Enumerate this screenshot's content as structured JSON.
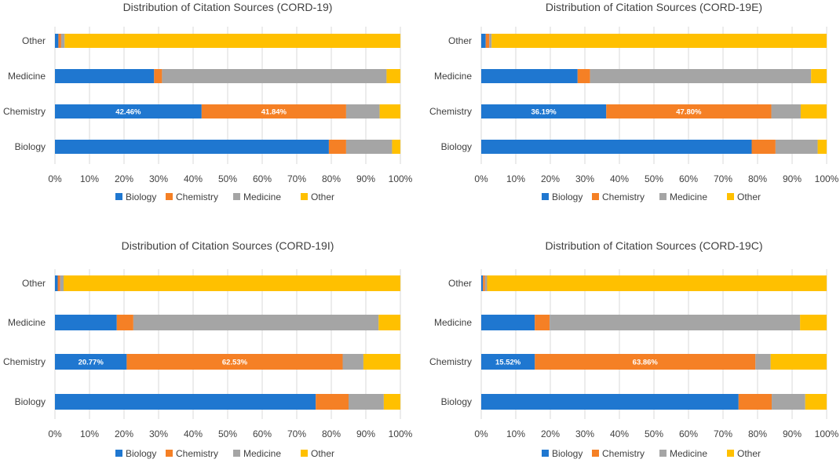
{
  "colors": {
    "Biology": "#1f77d0",
    "Chemistry": "#f58025",
    "Medicine": "#a5a5a5",
    "Other": "#ffc000",
    "grid": "#d9d9d9",
    "text": "#404040",
    "label": "#ffffff"
  },
  "chart_data": [
    {
      "type": "bar",
      "orientation": "horizontal",
      "stacked": "percent",
      "title": "Distribution of Citation Sources (CORD-19)",
      "categories": [
        "Other",
        "Medicine",
        "Chemistry",
        "Biology"
      ],
      "series": [
        {
          "name": "Biology",
          "values": [
            1.0,
            28.7,
            42.46,
            79.3
          ]
        },
        {
          "name": "Chemistry",
          "values": [
            0.8,
            2.3,
            41.84,
            5.0
          ]
        },
        {
          "name": "Medicine",
          "values": [
            1.0,
            65.0,
            9.7,
            13.3
          ]
        },
        {
          "name": "Other",
          "values": [
            97.2,
            4.0,
            6.0,
            2.4
          ]
        }
      ],
      "data_labels": [
        {
          "category": "Chemistry",
          "series": "Biology",
          "text": "42.46%"
        },
        {
          "category": "Chemistry",
          "series": "Chemistry",
          "text": "41.84%"
        }
      ],
      "xticks": [
        "0%",
        "10%",
        "20%",
        "30%",
        "40%",
        "50%",
        "60%",
        "70%",
        "80%",
        "90%",
        "100%"
      ],
      "xlim": [
        0,
        100
      ],
      "legend": [
        "Biology",
        "Chemistry",
        "Medicine",
        "Other"
      ],
      "legend_position": "bottom",
      "grid": true
    },
    {
      "type": "bar",
      "orientation": "horizontal",
      "stacked": "percent",
      "title": "Distribution of Citation Sources (CORD-19E)",
      "categories": [
        "Other",
        "Medicine",
        "Chemistry",
        "Biology"
      ],
      "series": [
        {
          "name": "Biology",
          "values": [
            1.3,
            27.9,
            36.19,
            78.3
          ]
        },
        {
          "name": "Chemistry",
          "values": [
            1.0,
            3.6,
            47.8,
            6.9
          ]
        },
        {
          "name": "Medicine",
          "values": [
            0.7,
            64.0,
            8.5,
            12.2
          ]
        },
        {
          "name": "Other",
          "values": [
            97.0,
            4.5,
            7.5,
            2.6
          ]
        }
      ],
      "data_labels": [
        {
          "category": "Chemistry",
          "series": "Biology",
          "text": "36.19%"
        },
        {
          "category": "Chemistry",
          "series": "Chemistry",
          "text": "47.80%"
        }
      ],
      "xticks": [
        "0%",
        "10%",
        "20%",
        "30%",
        "40%",
        "50%",
        "60%",
        "70%",
        "80%",
        "90%",
        "100%"
      ],
      "xlim": [
        0,
        100
      ],
      "legend": [
        "Biology",
        "Chemistry",
        "Medicine",
        "Other"
      ],
      "legend_position": "bottom",
      "grid": true
    },
    {
      "type": "bar",
      "orientation": "horizontal",
      "stacked": "percent",
      "title": "Distribution of Citation Sources (CORD-19I)",
      "categories": [
        "Other",
        "Medicine",
        "Chemistry",
        "Biology"
      ],
      "series": [
        {
          "name": "Biology",
          "values": [
            0.8,
            17.9,
            20.77,
            75.5
          ]
        },
        {
          "name": "Chemistry",
          "values": [
            0.7,
            4.8,
            62.53,
            9.5
          ]
        },
        {
          "name": "Medicine",
          "values": [
            1.0,
            71.0,
            6.0,
            10.2
          ]
        },
        {
          "name": "Other",
          "values": [
            97.5,
            6.3,
            10.7,
            4.8
          ]
        }
      ],
      "data_labels": [
        {
          "category": "Chemistry",
          "series": "Biology",
          "text": "20.77%"
        },
        {
          "category": "Chemistry",
          "series": "Chemistry",
          "text": "62.53%"
        }
      ],
      "xticks": [
        "0%",
        "10%",
        "20%",
        "30%",
        "40%",
        "50%",
        "60%",
        "70%",
        "80%",
        "90%",
        "100%"
      ],
      "xlim": [
        0,
        100
      ],
      "legend": [
        "Biology",
        "Chemistry",
        "Medicine",
        "Other"
      ],
      "legend_position": "bottom",
      "grid": true
    },
    {
      "type": "bar",
      "orientation": "horizontal",
      "stacked": "percent",
      "title": "Distribution of Citation Sources (CORD-19C)",
      "categories": [
        "Other",
        "Medicine",
        "Chemistry",
        "Biology"
      ],
      "series": [
        {
          "name": "Biology",
          "values": [
            0.5,
            15.5,
            15.52,
            74.5
          ]
        },
        {
          "name": "Chemistry",
          "values": [
            0.6,
            4.3,
            63.86,
            9.6
          ]
        },
        {
          "name": "Medicine",
          "values": [
            0.6,
            72.5,
            4.4,
            9.7
          ]
        },
        {
          "name": "Other",
          "values": [
            98.3,
            7.7,
            16.22,
            6.2
          ]
        }
      ],
      "data_labels": [
        {
          "category": "Chemistry",
          "series": "Biology",
          "text": "15.52%"
        },
        {
          "category": "Chemistry",
          "series": "Chemistry",
          "text": "63.86%"
        }
      ],
      "xticks": [
        "0%",
        "10%",
        "20%",
        "30%",
        "40%",
        "50%",
        "60%",
        "70%",
        "80%",
        "90%",
        "100%"
      ],
      "xlim": [
        0,
        100
      ],
      "legend": [
        "Biology",
        "Chemistry",
        "Medicine",
        "Other"
      ],
      "legend_position": "bottom",
      "grid": true
    }
  ]
}
